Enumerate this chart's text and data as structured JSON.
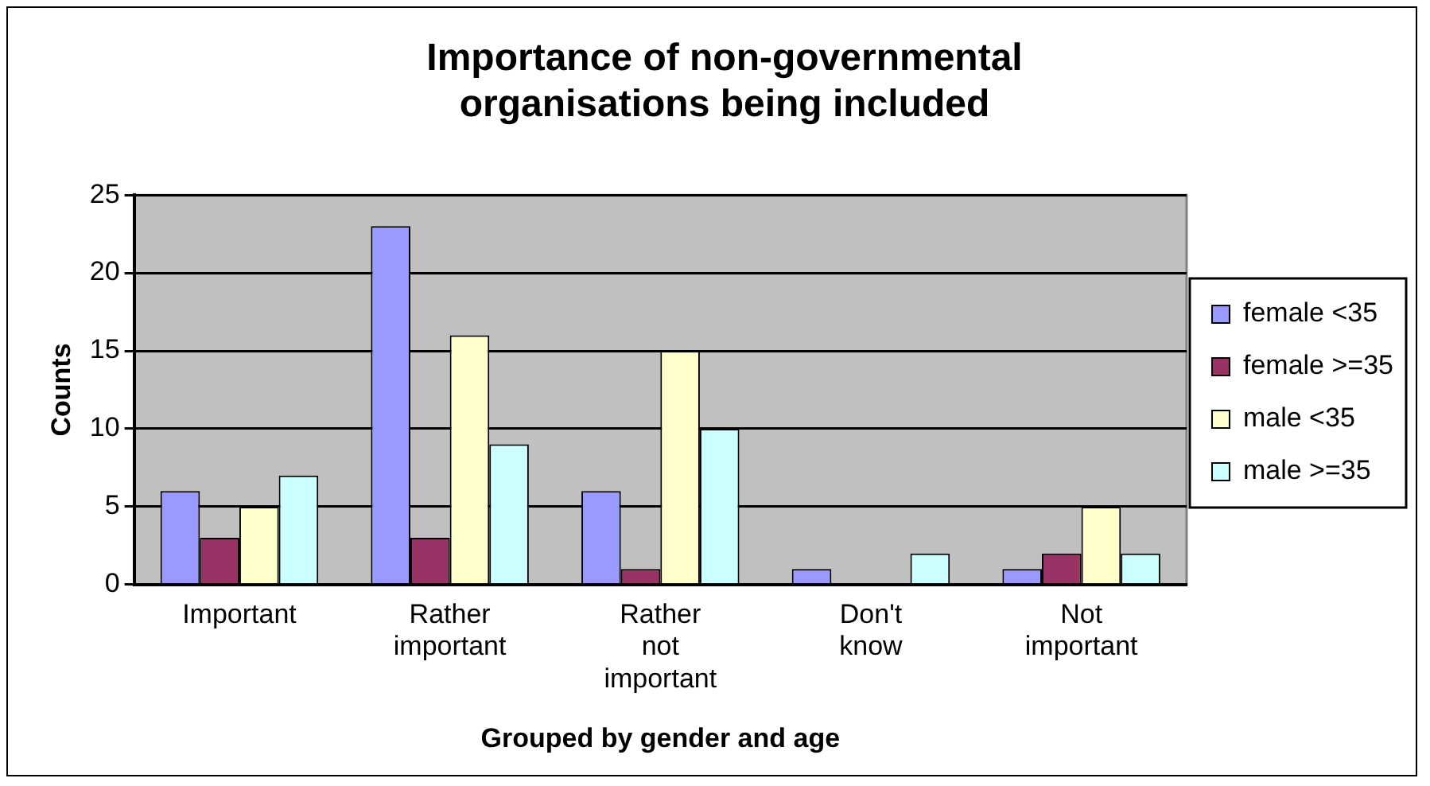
{
  "chart_data": {
    "type": "bar",
    "title": "Importance of non-governmental organisations being included",
    "xlabel": "Grouped by gender and age",
    "ylabel": "Counts",
    "categories": [
      "Important",
      "Rather important",
      "Rather not important",
      "Don't know",
      "Not important"
    ],
    "series": [
      {
        "name": "female <35",
        "color": "#9999ff",
        "values": [
          6,
          23,
          6,
          1,
          1
        ]
      },
      {
        "name": "female >=35",
        "color": "#993366",
        "values": [
          3,
          3,
          1,
          0,
          2
        ]
      },
      {
        "name": "male <35",
        "color": "#ffffcc",
        "values": [
          5,
          16,
          15,
          0,
          5
        ]
      },
      {
        "name": "male >=35",
        "color": "#ccffff",
        "values": [
          7,
          9,
          10,
          2,
          2
        ]
      }
    ],
    "ylim": [
      0,
      25
    ],
    "yticks": [
      0,
      5,
      10,
      15,
      20,
      25
    ],
    "grid": "y",
    "legend": "right"
  }
}
